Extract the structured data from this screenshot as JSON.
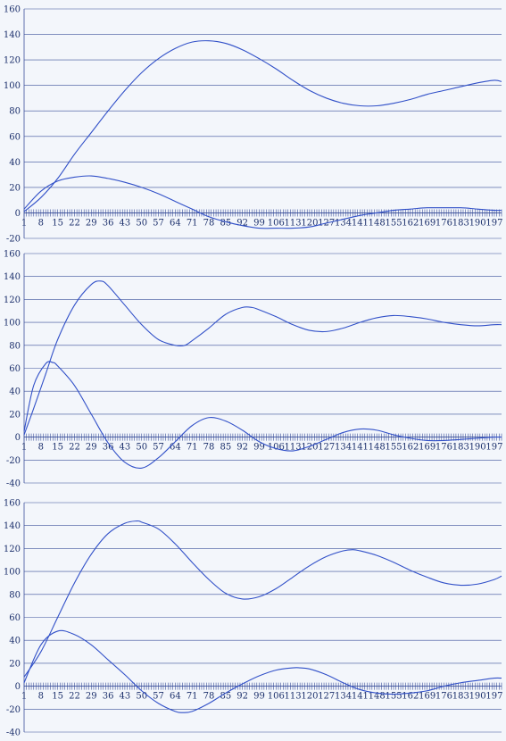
{
  "colors": {
    "background": "#f3f6fb",
    "gridline": "#3a4f9a",
    "series_line": "#3150c8",
    "tick_text": "#1b2f6b"
  },
  "chart_data": [
    {
      "type": "line",
      "ylim": [
        -20,
        160
      ],
      "y_ticks": [
        -20,
        0,
        20,
        40,
        60,
        80,
        100,
        120,
        140,
        160
      ],
      "x_ticks": [
        1,
        8,
        15,
        22,
        29,
        36,
        43,
        50,
        57,
        64,
        71,
        78,
        85,
        92,
        99,
        106,
        113,
        120,
        127,
        134,
        141,
        148,
        155,
        162,
        169,
        176,
        183,
        190,
        197
      ],
      "x_range": [
        1,
        200
      ],
      "grid": true,
      "series": [
        {
          "x": [
            1,
            8,
            15,
            22,
            29,
            36,
            43,
            50,
            57,
            64,
            71,
            78,
            85,
            92,
            99,
            106,
            113,
            120,
            127,
            134,
            141,
            148,
            155,
            162,
            169,
            176,
            183,
            190,
            197,
            200
          ],
          "values": [
            1,
            12,
            27,
            46,
            63,
            80,
            96,
            110,
            121,
            129,
            134,
            135,
            133,
            128,
            121,
            113,
            104,
            96,
            90,
            86,
            84,
            84,
            86,
            89,
            93,
            96,
            99,
            102,
            104,
            103
          ]
        },
        {
          "x": [
            1,
            8,
            15,
            22,
            29,
            36,
            43,
            50,
            57,
            64,
            71,
            78,
            85,
            92,
            99,
            106,
            113,
            120,
            127,
            134,
            141,
            148,
            155,
            162,
            169,
            176,
            183,
            190,
            197,
            200
          ],
          "values": [
            3,
            17,
            25,
            28,
            29,
            27,
            24,
            20,
            15,
            9,
            3,
            -3,
            -7,
            -10,
            -12,
            -12,
            -12,
            -11,
            -8,
            -5,
            -2,
            0,
            2,
            3,
            4,
            4,
            4,
            3,
            2,
            2
          ]
        }
      ]
    },
    {
      "type": "line",
      "ylim": [
        -40,
        160
      ],
      "y_ticks": [
        -40,
        -20,
        0,
        20,
        40,
        60,
        80,
        100,
        120,
        140,
        160
      ],
      "x_ticks": [
        1,
        8,
        15,
        22,
        29,
        36,
        43,
        50,
        57,
        64,
        71,
        78,
        85,
        92,
        99,
        106,
        113,
        120,
        127,
        134,
        141,
        148,
        155,
        162,
        169,
        176,
        183,
        190,
        197
      ],
      "x_range": [
        1,
        200
      ],
      "grid": true,
      "series": [
        {
          "x": [
            1,
            5,
            10,
            15,
            22,
            29,
            33,
            36,
            43,
            50,
            57,
            64,
            68,
            71,
            78,
            85,
            92,
            96,
            99,
            106,
            113,
            120,
            127,
            134,
            141,
            148,
            155,
            162,
            169,
            176,
            183,
            190,
            197,
            200
          ],
          "values": [
            2,
            25,
            55,
            85,
            115,
            133,
            136,
            132,
            115,
            98,
            85,
            80,
            80,
            84,
            95,
            107,
            113,
            113,
            111,
            105,
            98,
            93,
            92,
            95,
            100,
            104,
            106,
            105,
            103,
            100,
            98,
            97,
            98,
            98
          ]
        },
        {
          "x": [
            1,
            5,
            10,
            13,
            15,
            22,
            29,
            36,
            43,
            50,
            57,
            64,
            71,
            78,
            85,
            92,
            99,
            106,
            113,
            120,
            127,
            134,
            141,
            148,
            155,
            162,
            169,
            176,
            183,
            190,
            197,
            200
          ],
          "values": [
            5,
            45,
            64,
            65,
            62,
            45,
            20,
            -5,
            -22,
            -27,
            -18,
            -4,
            10,
            17,
            14,
            6,
            -4,
            -10,
            -12,
            -8,
            -2,
            4,
            7,
            6,
            2,
            -1,
            -3,
            -3,
            -2,
            -1,
            0,
            0
          ]
        }
      ]
    },
    {
      "type": "line",
      "ylim": [
        -40,
        160
      ],
      "y_ticks": [
        -40,
        -20,
        0,
        20,
        40,
        60,
        80,
        100,
        120,
        140,
        160
      ],
      "x_ticks": [
        1,
        8,
        15,
        22,
        29,
        36,
        43,
        50,
        57,
        64,
        71,
        78,
        85,
        92,
        99,
        106,
        113,
        120,
        127,
        134,
        141,
        148,
        155,
        162,
        169,
        176,
        183,
        190,
        197
      ],
      "x_range": [
        1,
        200
      ],
      "grid": true,
      "series": [
        {
          "x": [
            1,
            8,
            15,
            22,
            29,
            36,
            43,
            48,
            50,
            57,
            64,
            71,
            78,
            85,
            92,
            99,
            106,
            113,
            120,
            127,
            134,
            138,
            141,
            148,
            155,
            162,
            169,
            176,
            183,
            190,
            197,
            200
          ],
          "values": [
            8,
            30,
            60,
            90,
            115,
            133,
            142,
            144,
            143,
            137,
            124,
            108,
            93,
            81,
            76,
            78,
            85,
            95,
            105,
            113,
            118,
            119,
            118,
            114,
            108,
            101,
            95,
            90,
            88,
            89,
            93,
            96
          ]
        },
        {
          "x": [
            1,
            8,
            15,
            22,
            29,
            36,
            43,
            50,
            57,
            64,
            67,
            71,
            78,
            85,
            92,
            99,
            106,
            113,
            116,
            120,
            127,
            134,
            141,
            148,
            155,
            162,
            169,
            176,
            183,
            190,
            197,
            200
          ],
          "values": [
            3,
            36,
            48,
            45,
            36,
            23,
            10,
            -4,
            -15,
            -22,
            -23,
            -22,
            -15,
            -6,
            2,
            9,
            14,
            16,
            16,
            15,
            10,
            3,
            -3,
            -6,
            -7,
            -6,
            -4,
            0,
            3,
            5,
            7,
            7
          ]
        }
      ]
    }
  ]
}
